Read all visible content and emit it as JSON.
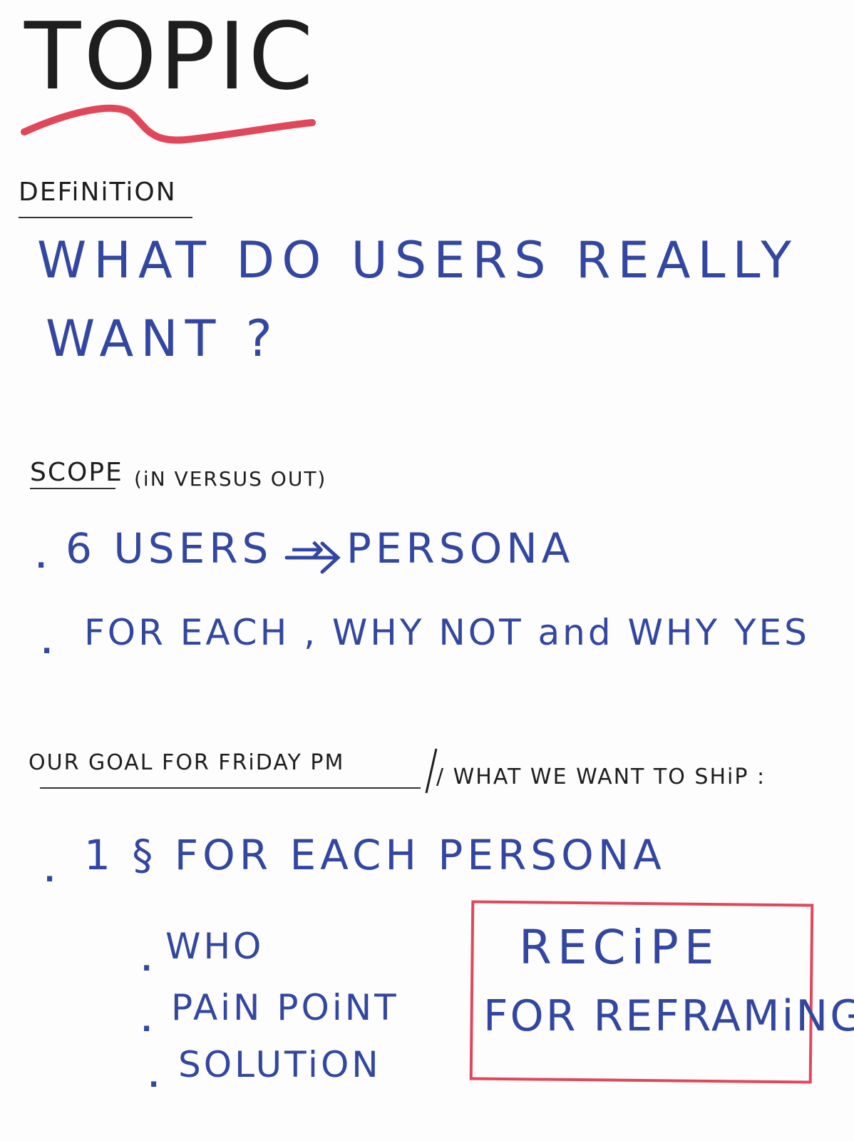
{
  "title": "TOPIC",
  "definition": {
    "heading": "DEFiNiTiON",
    "line1": "WHAT DO USERS REALLY",
    "line2": "WANT ?"
  },
  "scope": {
    "heading": "SCOPE",
    "note": "(iN VERSUS OUT)",
    "bullets": [
      "6 USERS → PERSONA",
      "FOR EACH , WHY NOT and WHY YES"
    ]
  },
  "goal": {
    "heading": "OUR GOAL FOR FRiDAY PM",
    "heading_alt": "/ WHAT WE WANT TO SHiP :",
    "main_bullet": "1 § FOR EACH PERSONA",
    "sub_bullets": [
      "WHO",
      "PAiN POiNT",
      "SOLUTiON"
    ]
  },
  "recipe_box": {
    "line1": "RECiPE",
    "line2": "FOR REFRAMiNG"
  },
  "colors": {
    "black_ink": "#1e1e1e",
    "blue_ink": "#3346a0",
    "red_ink": "#e0475a"
  }
}
